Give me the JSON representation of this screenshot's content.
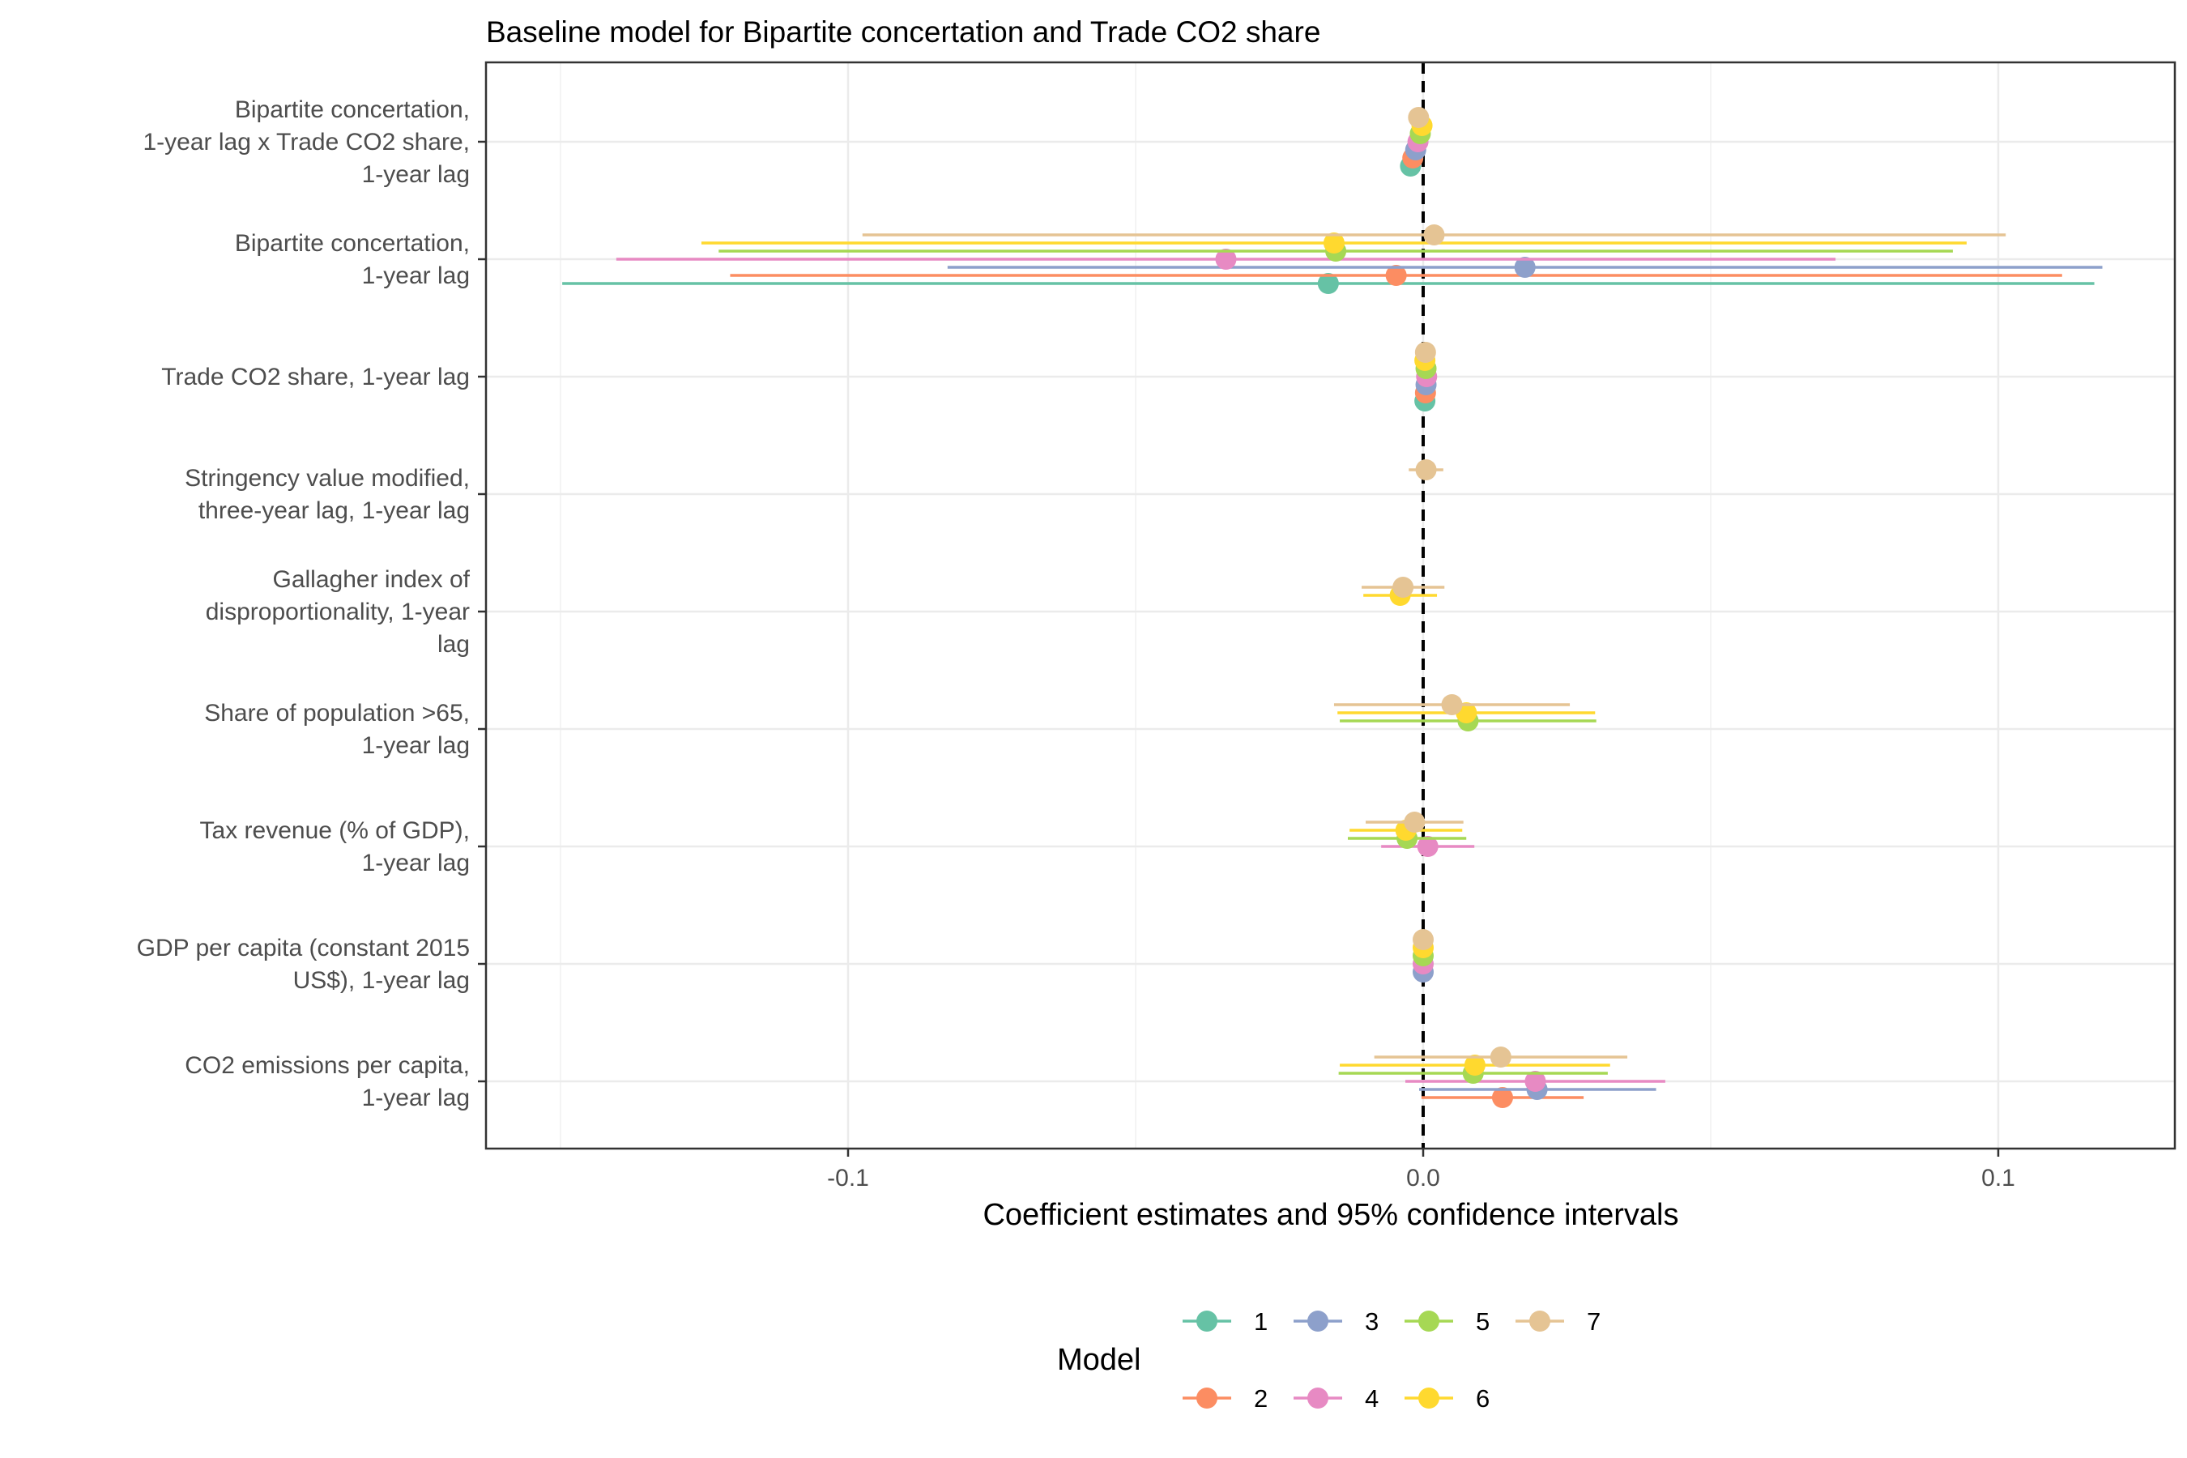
{
  "chart_data": {
    "type": "scatter",
    "subtype": "coefficient-plot",
    "title": "Baseline model for Bipartite concertation and Trade CO2 share",
    "xlabel": "Coefficient estimates and 95% confidence intervals",
    "ylabel": "",
    "xlim": [
      -0.163,
      0.13
    ],
    "x_ticks": [
      -0.1,
      0.0,
      0.1
    ],
    "x_tick_labels": [
      "-0.1",
      "0.0",
      "0.1"
    ],
    "reference_line": 0,
    "grid": true,
    "legend": {
      "title": "Model",
      "position": "bottom",
      "entries": [
        "1",
        "2",
        "3",
        "4",
        "5",
        "6",
        "7"
      ],
      "colors": [
        "#66c2a5",
        "#fc8d62",
        "#8da0cb",
        "#e78ac3",
        "#a6d854",
        "#ffd92f",
        "#e5c494"
      ]
    },
    "terms": [
      {
        "lines": [
          "Bipartite concertation,",
          "1-year lag x Trade CO2 share,",
          "1-year lag"
        ]
      },
      {
        "lines": [
          "Bipartite concertation,",
          "1-year lag"
        ]
      },
      {
        "lines": [
          "Trade CO2 share, 1-year lag"
        ]
      },
      {
        "lines": [
          "Stringency value modified,",
          "three-year lag, 1-year lag"
        ]
      },
      {
        "lines": [
          "Gallagher index of",
          "disproportionality, 1-year",
          "lag"
        ]
      },
      {
        "lines": [
          "Share of population >65,",
          "1-year lag"
        ]
      },
      {
        "lines": [
          "Tax revenue (% of GDP),",
          "1-year lag"
        ]
      },
      {
        "lines": [
          "GDP per capita (constant 2015",
          "US$), 1-year lag"
        ]
      },
      {
        "lines": [
          "CO2 emissions per capita,",
          "1-year lag"
        ]
      }
    ],
    "series": [
      {
        "name": "1",
        "points": [
          {
            "term": 0,
            "estimate": -0.0022,
            "low": -0.0032,
            "high": -0.0012
          },
          {
            "term": 1,
            "estimate": -0.0165,
            "low": -0.1497,
            "high": 0.1167
          },
          {
            "term": 2,
            "estimate": 0.0003,
            "low": 0.0,
            "high": 0.0006
          }
        ]
      },
      {
        "name": "2",
        "points": [
          {
            "term": 0,
            "estimate": -0.0018,
            "low": -0.0027,
            "high": -0.0009
          },
          {
            "term": 1,
            "estimate": -0.0047,
            "low": -0.1205,
            "high": 0.1111
          },
          {
            "term": 2,
            "estimate": 0.0004,
            "low": 0.0001,
            "high": 0.0007
          },
          {
            "term": 8,
            "estimate": 0.0138,
            "low": -0.0003,
            "high": 0.0279
          }
        ]
      },
      {
        "name": "3",
        "points": [
          {
            "term": 0,
            "estimate": -0.0013,
            "low": -0.0022,
            "high": -0.0004
          },
          {
            "term": 1,
            "estimate": 0.0177,
            "low": -0.0827,
            "high": 0.1181
          },
          {
            "term": 2,
            "estimate": 0.0005,
            "low": 0.0002,
            "high": 0.0008
          },
          {
            "term": 7,
            "estimate": 0.0,
            "low": -0.0001,
            "high": 0.0001
          },
          {
            "term": 8,
            "estimate": 0.0198,
            "low": -0.0007,
            "high": 0.0405
          }
        ]
      },
      {
        "name": "4",
        "points": [
          {
            "term": 0,
            "estimate": -0.0009,
            "low": -0.0018,
            "high": 0.0
          },
          {
            "term": 1,
            "estimate": -0.0343,
            "low": -0.1403,
            "high": 0.0717
          },
          {
            "term": 2,
            "estimate": 0.0006,
            "low": 0.0003,
            "high": 0.0009
          },
          {
            "term": 6,
            "estimate": 0.0008,
            "low": -0.0073,
            "high": 0.0089
          },
          {
            "term": 7,
            "estimate": 0.0,
            "low": -0.0001,
            "high": 0.0001
          },
          {
            "term": 8,
            "estimate": 0.0195,
            "low": -0.0031,
            "high": 0.0421
          }
        ]
      },
      {
        "name": "5",
        "points": [
          {
            "term": 0,
            "estimate": -0.0005,
            "low": -0.0014,
            "high": 0.0004
          },
          {
            "term": 1,
            "estimate": -0.0152,
            "low": -0.1225,
            "high": 0.0921
          },
          {
            "term": 2,
            "estimate": 0.0005,
            "low": 0.0002,
            "high": 0.0008
          },
          {
            "term": 5,
            "estimate": 0.0078,
            "low": -0.0145,
            "high": 0.0301
          },
          {
            "term": 6,
            "estimate": -0.0028,
            "low": -0.0131,
            "high": 0.0075
          },
          {
            "term": 7,
            "estimate": 0.0,
            "low": -0.0001,
            "high": 0.0001
          },
          {
            "term": 8,
            "estimate": 0.0087,
            "low": -0.0147,
            "high": 0.0321
          }
        ]
      },
      {
        "name": "6",
        "points": [
          {
            "term": 0,
            "estimate": -0.0002,
            "low": -0.0011,
            "high": 0.0007
          },
          {
            "term": 1,
            "estimate": -0.0155,
            "low": -0.1255,
            "high": 0.0945
          },
          {
            "term": 2,
            "estimate": 0.0003,
            "low": 0.0,
            "high": 0.0006
          },
          {
            "term": 4,
            "estimate": -0.004,
            "low": -0.0104,
            "high": 0.0024
          },
          {
            "term": 5,
            "estimate": 0.0075,
            "low": -0.0149,
            "high": 0.0299
          },
          {
            "term": 6,
            "estimate": -0.003,
            "low": -0.0128,
            "high": 0.0068
          },
          {
            "term": 7,
            "estimate": 0.0,
            "low": -0.0001,
            "high": 0.0001
          },
          {
            "term": 8,
            "estimate": 0.009,
            "low": -0.0145,
            "high": 0.0325
          }
        ]
      },
      {
        "name": "7",
        "points": [
          {
            "term": 0,
            "estimate": -0.0008,
            "low": -0.0016,
            "high": 0.0
          },
          {
            "term": 1,
            "estimate": 0.0019,
            "low": -0.0975,
            "high": 0.1013
          },
          {
            "term": 2,
            "estimate": 0.0004,
            "low": 0.0001,
            "high": 0.0007
          },
          {
            "term": 3,
            "estimate": 0.0005,
            "low": -0.0025,
            "high": 0.0035
          },
          {
            "term": 4,
            "estimate": -0.0035,
            "low": -0.0107,
            "high": 0.0037
          },
          {
            "term": 5,
            "estimate": 0.005,
            "low": -0.0155,
            "high": 0.0255
          },
          {
            "term": 6,
            "estimate": -0.0015,
            "low": -0.01,
            "high": 0.007
          },
          {
            "term": 7,
            "estimate": 0.0,
            "low": -0.0001,
            "high": 0.0001
          },
          {
            "term": 8,
            "estimate": 0.0135,
            "low": -0.0085,
            "high": 0.0355
          }
        ]
      }
    ]
  }
}
